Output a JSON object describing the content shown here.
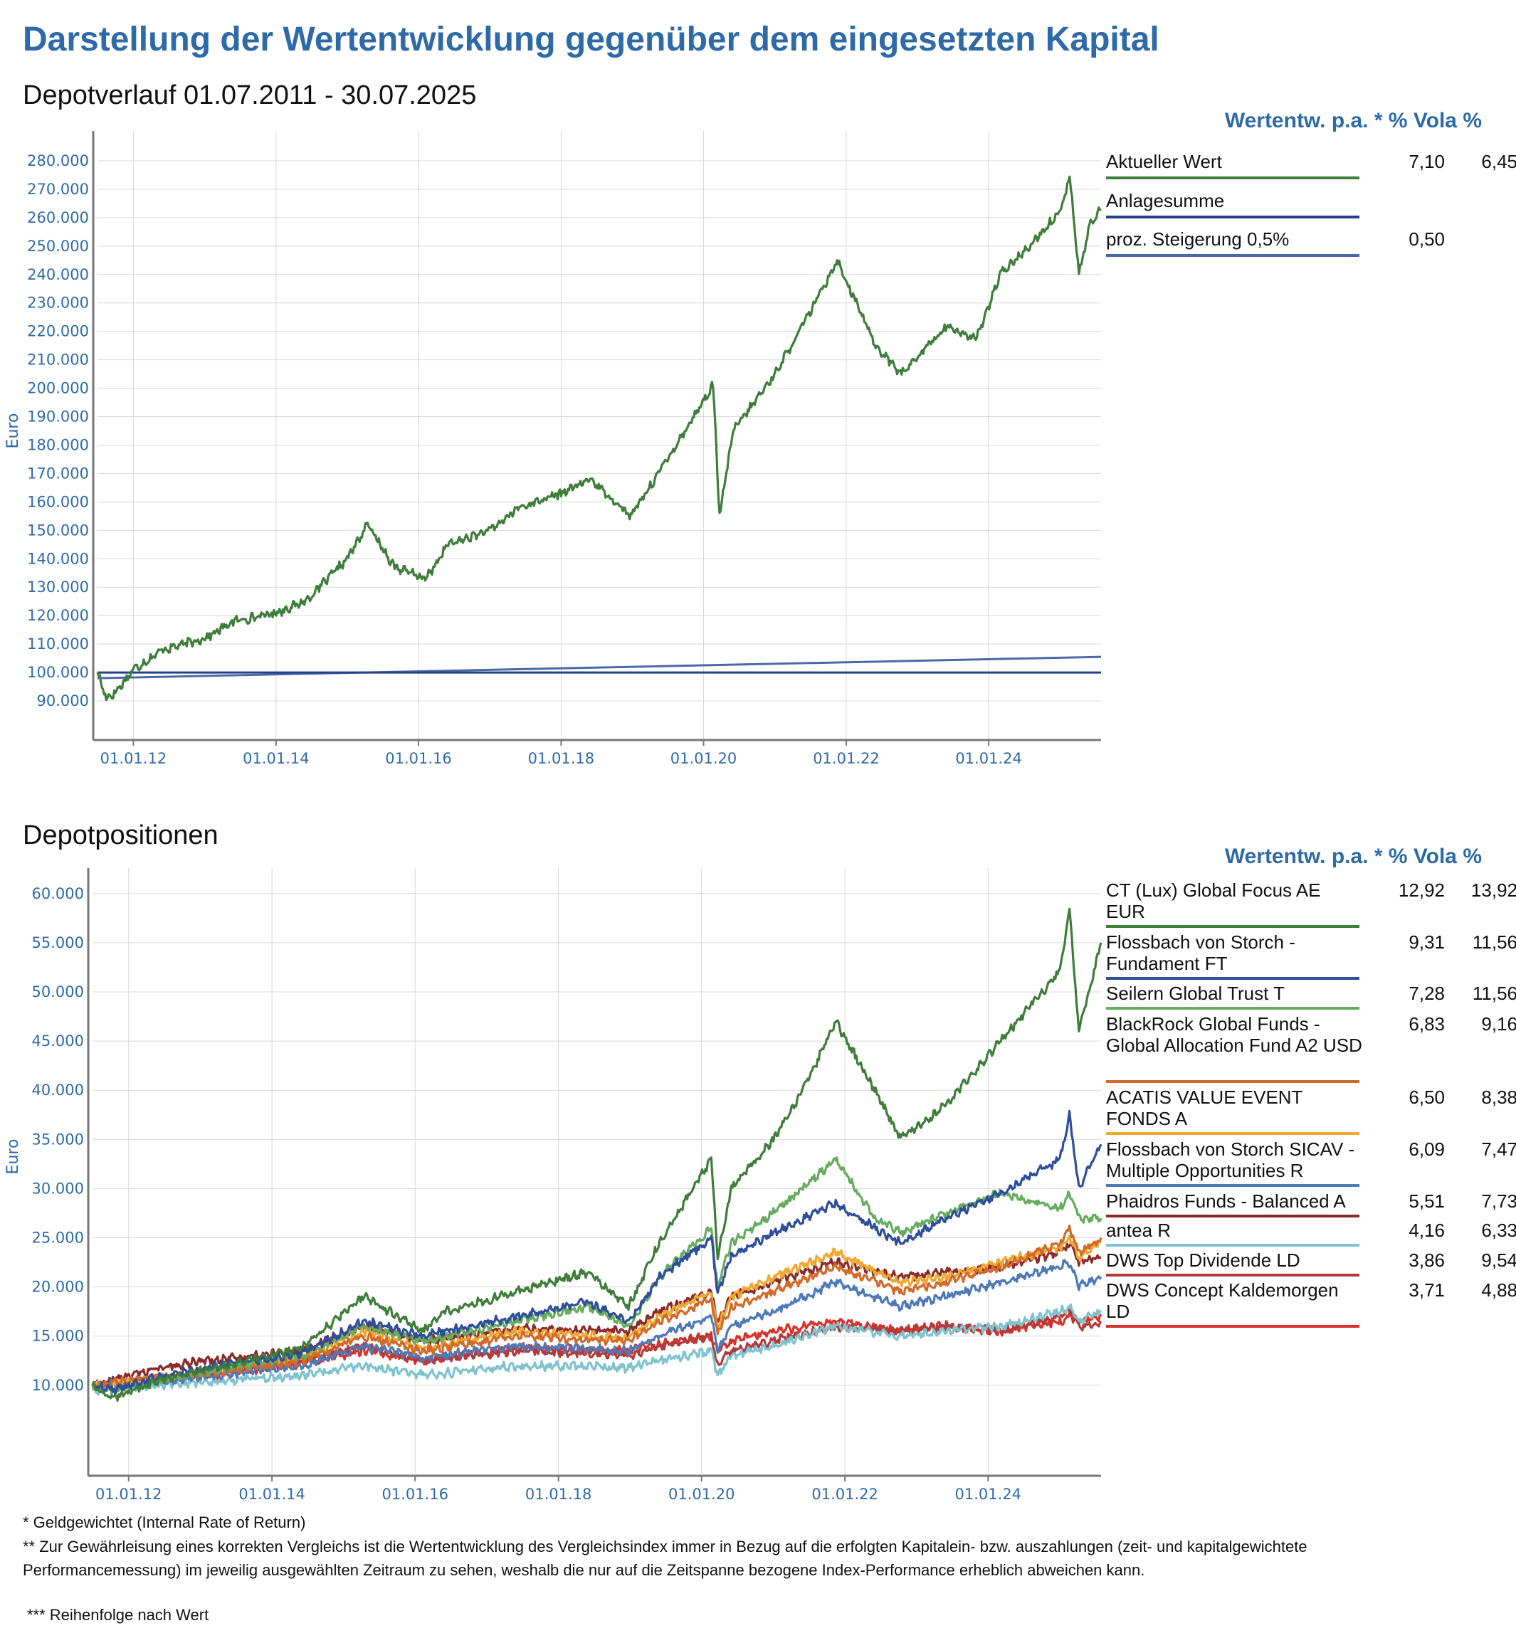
{
  "title": "Darstellung der Wertentwicklung gegenüber dem eingesetzten Kapital",
  "legend_header": "Wertentw. p.a. * % Vola %",
  "charts": [
    {
      "id": "depotverlauf",
      "subtitle": "Depotverlauf 01.07.2011 - 30.07.2025",
      "ylabel": "Euro",
      "x_ticks": [
        "01.01.12",
        "01.01.14",
        "01.01.16",
        "01.01.18",
        "01.01.20",
        "01.01.22",
        "01.01.24"
      ],
      "y_ticks": [
        "90.000",
        "100.000",
        "110.000",
        "120.000",
        "130.000",
        "140.000",
        "150.000",
        "160.000",
        "170.000",
        "180.000",
        "190.000",
        "200.000",
        "210.000",
        "220.000",
        "230.000",
        "240.000",
        "250.000",
        "260.000",
        "270.000",
        "280.000"
      ],
      "legend": [
        {
          "name": "Aktueller Wert",
          "return": "7,10",
          "vola": "6,45"
        },
        {
          "name": "Anlagesumme",
          "return": "",
          "vola": ""
        },
        {
          "name": "proz. Steigerung 0,5%",
          "return": "0,50",
          "vola": ""
        }
      ]
    },
    {
      "id": "depotpositionen",
      "subtitle": "Depotpositionen",
      "ylabel": "Euro",
      "x_ticks": [
        "01.01.12",
        "01.01.14",
        "01.01.16",
        "01.01.18",
        "01.01.20",
        "01.01.22",
        "01.01.24"
      ],
      "y_ticks": [
        "10.000",
        "15.000",
        "20.000",
        "25.000",
        "30.000",
        "35.000",
        "40.000",
        "45.000",
        "50.000",
        "55.000",
        "60.000"
      ],
      "legend": [
        {
          "name": "CT (Lux) Global Focus AE EUR",
          "return": "12,92",
          "vola": "13,92"
        },
        {
          "name": "Flossbach von Storch - Fundament FT",
          "return": "9,31",
          "vola": "11,56"
        },
        {
          "name": "Seilern Global Trust T",
          "return": "7,28",
          "vola": "11,56"
        },
        {
          "name": "BlackRock Global Funds - Global Allocation Fund A2 USD",
          "return": "6,83",
          "vola": "9,16"
        },
        {
          "name": "ACATIS VALUE EVENT FONDS A",
          "return": "6,50",
          "vola": "8,38"
        },
        {
          "name": "Flossbach von Storch SICAV - Multiple Opportunities R",
          "return": "6,09",
          "vola": "7,47"
        },
        {
          "name": "Phaidros Funds - Balanced A",
          "return": "5,51",
          "vola": "7,73"
        },
        {
          "name": "antea R",
          "return": "4,16",
          "vola": "6,33"
        },
        {
          "name": "DWS Top Dividende LD",
          "return": "3,86",
          "vola": "9,54"
        },
        {
          "name": "DWS Concept Kaldemorgen LD",
          "return": "3,71",
          "vola": "4,88"
        }
      ]
    }
  ],
  "footnotes": [
    "* Geldgewichtet (Internal Rate of Return)",
    "** Zur Gewährleisung eines korrekten Vergleichs ist die Wertentwicklung des Vergleichsindex immer in Bezug auf die erfolgten Kapitalein- bzw. auszahlungen (zeit- und kapitalgewichtete Performancemessung) im jeweilig ausgewählten Zeitraum zu sehen, weshalb die nur auf die Zeitspanne bezogene Index-Performance erheblich abweichen kann.",
    "*** Reihenfolge nach Wert"
  ],
  "chart_data": [
    {
      "type": "line",
      "title": "Depotverlauf 01.07.2011 - 30.07.2025",
      "ylabel": "Euro",
      "ylim": [
        85000,
        285000
      ],
      "xlim": [
        "2011-07-01",
        "2025-07-30"
      ],
      "grid": true,
      "legend_position": "right",
      "series": [
        {
          "name": "Aktueller Wert",
          "color": "#3f7d3a",
          "x": [
            "2011-07-01",
            "2011-08-15",
            "2011-10-01",
            "2012-01-01",
            "2012-06-01",
            "2013-01-01",
            "2013-06-01",
            "2014-01-01",
            "2014-06-01",
            "2015-01-01",
            "2015-04-15",
            "2015-09-01",
            "2016-02-10",
            "2016-06-01",
            "2017-01-01",
            "2017-06-01",
            "2018-01-01",
            "2018-06-01",
            "2018-12-24",
            "2019-06-01",
            "2020-02-19",
            "2020-03-23",
            "2020-06-01",
            "2021-01-01",
            "2021-06-01",
            "2021-11-15",
            "2022-06-01",
            "2022-10-12",
            "2023-06-01",
            "2023-10-27",
            "2024-03-01",
            "2024-07-01",
            "2025-01-01",
            "2025-02-19",
            "2025-04-08",
            "2025-06-01",
            "2025-07-30"
          ],
          "values": [
            100000,
            91000,
            93000,
            101000,
            108000,
            112000,
            118000,
            121000,
            125000,
            140000,
            152000,
            137000,
            133000,
            145000,
            150000,
            158000,
            163000,
            168000,
            155000,
            172000,
            201000,
            155000,
            185000,
            205000,
            223000,
            245000,
            215000,
            205000,
            222000,
            217000,
            240000,
            248000,
            262000,
            275000,
            240000,
            257000,
            263000
          ]
        },
        {
          "name": "Anlagesumme",
          "color": "#27408b",
          "x": [
            "2011-07-01",
            "2025-07-30"
          ],
          "values": [
            100000,
            100000
          ]
        },
        {
          "name": "proz. Steigerung 0,5%",
          "color": "#4a69a8",
          "x": [
            "2011-07-01",
            "2025-07-30"
          ],
          "values": [
            98000,
            105500
          ]
        }
      ]
    },
    {
      "type": "line",
      "title": "Depotpositionen",
      "ylabel": "Euro",
      "ylim": [
        5500,
        61000
      ],
      "xlim": [
        "2011-07-01",
        "2025-07-30"
      ],
      "grid": true,
      "legend_position": "right",
      "series": [
        {
          "name": "CT (Lux) Global Focus AE EUR",
          "color": "#3f7d3a",
          "x": [
            "2011-07-01",
            "2011-10-01",
            "2012-06-01",
            "2013-06-01",
            "2014-06-01",
            "2015-04-15",
            "2016-02-10",
            "2016-06-01",
            "2017-06-01",
            "2018-06-01",
            "2018-12-24",
            "2019-06-01",
            "2020-02-19",
            "2020-03-23",
            "2020-06-01",
            "2021-01-01",
            "2021-06-01",
            "2021-11-15",
            "2022-06-01",
            "2022-10-12",
            "2023-06-01",
            "2024-03-01",
            "2025-01-01",
            "2025-02-19",
            "2025-04-08",
            "2025-07-30"
          ],
          "values": [
            10000,
            8600,
            10500,
            12000,
            13800,
            19000,
            15500,
            17500,
            19500,
            21500,
            18000,
            24500,
            33000,
            23000,
            30000,
            35000,
            40000,
            47000,
            40000,
            35000,
            38500,
            45000,
            52000,
            58500,
            46000,
            55000
          ]
        },
        {
          "name": "Flossbach von Storch - Fundament FT",
          "color": "#2e4e9a",
          "x": [
            "2011-07-01",
            "2011-10-01",
            "2012-06-01",
            "2013-06-01",
            "2014-06-01",
            "2015-04-15",
            "2016-02-10",
            "2017-06-01",
            "2018-06-01",
            "2018-12-24",
            "2019-06-01",
            "2020-02-19",
            "2020-03-23",
            "2020-06-01",
            "2021-01-01",
            "2021-11-15",
            "2022-06-01",
            "2022-10-12",
            "2023-06-01",
            "2024-03-01",
            "2025-01-01",
            "2025-02-19",
            "2025-04-08",
            "2025-07-30"
          ],
          "values": [
            10000,
            9500,
            10800,
            12200,
            13200,
            16500,
            15000,
            17000,
            18500,
            16500,
            21000,
            25000,
            19500,
            23000,
            25500,
            28500,
            26000,
            24500,
            27000,
            29500,
            33000,
            37500,
            30000,
            34500
          ]
        },
        {
          "name": "Seilern Global Trust T",
          "color": "#66ac5e",
          "x": [
            "2011-07-01",
            "2011-10-01",
            "2012-06-01",
            "2013-06-01",
            "2014-06-01",
            "2015-04-15",
            "2016-02-10",
            "2017-06-01",
            "2018-06-01",
            "2018-12-24",
            "2019-06-01",
            "2020-02-19",
            "2020-03-23",
            "2020-06-01",
            "2021-01-01",
            "2021-11-15",
            "2022-06-01",
            "2022-10-12",
            "2023-06-01",
            "2024-03-01",
            "2025-01-01",
            "2025-02-19",
            "2025-04-08",
            "2025-07-30"
          ],
          "values": [
            10000,
            9300,
            10500,
            11800,
            13000,
            16000,
            14500,
            16500,
            18000,
            16000,
            21000,
            26000,
            20000,
            24500,
            27500,
            33000,
            27000,
            25500,
            27500,
            29500,
            28000,
            29500,
            27000,
            27000
          ]
        },
        {
          "name": "BlackRock Global Funds - Global Allocation Fund A2 USD",
          "color": "#d26a2a",
          "x": [
            "2011-07-01",
            "2012-06-01",
            "2013-06-01",
            "2014-06-01",
            "2015-04-15",
            "2016-02-10",
            "2017-06-01",
            "2018-12-24",
            "2019-06-01",
            "2020-02-19",
            "2020-03-23",
            "2020-06-01",
            "2021-01-01",
            "2021-11-15",
            "2022-10-12",
            "2023-06-01",
            "2024-03-01",
            "2025-01-01",
            "2025-02-19",
            "2025-04-08",
            "2025-07-30"
          ],
          "values": [
            10000,
            10800,
            11500,
            12500,
            15000,
            13500,
            15000,
            14500,
            16500,
            18800,
            15500,
            18000,
            19500,
            22000,
            19500,
            20500,
            22000,
            24500,
            26000,
            23500,
            25000
          ]
        },
        {
          "name": "ACATIS VALUE EVENT FONDS A",
          "color": "#f0a830",
          "x": [
            "2011-07-01",
            "2012-06-01",
            "2013-06-01",
            "2014-06-01",
            "2015-04-15",
            "2016-02-10",
            "2017-06-01",
            "2018-12-24",
            "2019-06-01",
            "2020-02-19",
            "2020-03-23",
            "2020-06-01",
            "2021-01-01",
            "2021-11-15",
            "2022-10-12",
            "2023-06-01",
            "2024-03-01",
            "2025-01-01",
            "2025-02-19",
            "2025-04-08",
            "2025-07-30"
          ],
          "values": [
            10000,
            10600,
            11800,
            12800,
            15500,
            13800,
            15500,
            14800,
            17000,
            19500,
            16000,
            19000,
            21000,
            23500,
            20500,
            21000,
            22500,
            24000,
            25000,
            23000,
            24500
          ]
        },
        {
          "name": "Flossbach von Storch SICAV - Multiple Opportunities R",
          "color": "#4e79b8",
          "x": [
            "2011-07-01",
            "2012-06-01",
            "2013-06-01",
            "2014-06-01",
            "2015-04-15",
            "2016-02-10",
            "2017-06-01",
            "2018-12-24",
            "2019-06-01",
            "2020-02-19",
            "2020-03-23",
            "2020-06-01",
            "2021-01-01",
            "2021-11-15",
            "2022-10-12",
            "2023-06-01",
            "2024-03-01",
            "2025-01-01",
            "2025-02-19",
            "2025-04-08",
            "2025-07-30"
          ],
          "values": [
            10000,
            10400,
            11200,
            12000,
            14000,
            12800,
            14000,
            13500,
            15000,
            17000,
            13500,
            16000,
            17500,
            20500,
            18000,
            19000,
            20500,
            22000,
            22500,
            20000,
            21000
          ]
        },
        {
          "name": "Phaidros Funds - Balanced A",
          "color": "#8b2a2a",
          "x": [
            "2011-07-01",
            "2012-06-01",
            "2013-06-01",
            "2014-06-01",
            "2015-04-15",
            "2016-02-10",
            "2017-06-01",
            "2018-12-24",
            "2019-06-01",
            "2020-02-19",
            "2020-03-23",
            "2020-06-01",
            "2021-01-01",
            "2021-11-15",
            "2022-10-12",
            "2023-06-01",
            "2024-03-01",
            "2025-01-01",
            "2025-02-19",
            "2025-04-08",
            "2025-07-30"
          ],
          "values": [
            10000,
            11800,
            12800,
            13500,
            16000,
            14500,
            15800,
            15500,
            17500,
            19500,
            16500,
            19000,
            20500,
            22500,
            21000,
            21500,
            22000,
            23500,
            24500,
            22500,
            23000
          ]
        },
        {
          "name": "antea R",
          "color": "#7ec3cf",
          "x": [
            "2011-07-01",
            "2012-06-01",
            "2013-06-01",
            "2014-06-01",
            "2015-04-15",
            "2016-02-10",
            "2017-06-01",
            "2018-12-24",
            "2019-06-01",
            "2020-02-19",
            "2020-03-23",
            "2020-06-01",
            "2021-01-01",
            "2021-11-15",
            "2022-10-12",
            "2023-06-01",
            "2024-03-01",
            "2025-01-01",
            "2025-02-19",
            "2025-04-08",
            "2025-07-30"
          ],
          "values": [
            9500,
            10000,
            10500,
            11000,
            12000,
            11000,
            12000,
            11800,
            12500,
            13500,
            11000,
            13000,
            14000,
            16000,
            15000,
            15500,
            16000,
            17500,
            18000,
            16500,
            17500
          ]
        },
        {
          "name": "DWS Top Dividende LD",
          "color": "#b23a3a",
          "x": [
            "2011-07-01",
            "2012-06-01",
            "2013-06-01",
            "2014-06-01",
            "2015-04-15",
            "2016-02-10",
            "2017-06-01",
            "2018-12-24",
            "2019-06-01",
            "2020-02-19",
            "2020-03-23",
            "2020-06-01",
            "2021-01-01",
            "2021-11-15",
            "2022-10-12",
            "2023-06-01",
            "2024-03-01",
            "2025-01-01",
            "2025-02-19",
            "2025-04-08",
            "2025-07-30"
          ],
          "values": [
            10000,
            10500,
            11500,
            12500,
            14000,
            12500,
            13500,
            13000,
            14000,
            15000,
            12000,
            13500,
            14500,
            16000,
            15500,
            16000,
            15500,
            17000,
            17500,
            16000,
            16500
          ]
        },
        {
          "name": "DWS Concept Kaldemorgen LD",
          "color": "#d8322a",
          "x": [
            "2011-07-01",
            "2012-06-01",
            "2013-06-01",
            "2014-06-01",
            "2015-04-15",
            "2016-02-10",
            "2017-06-01",
            "2018-12-24",
            "2019-06-01",
            "2020-02-19",
            "2020-03-23",
            "2020-06-01",
            "2021-01-01",
            "2021-11-15",
            "2022-10-12",
            "2023-06-01",
            "2024-03-01",
            "2025-01-01",
            "2025-02-19",
            "2025-04-08",
            "2025-07-30"
          ],
          "values": [
            10000,
            10400,
            11300,
            12200,
            13500,
            12500,
            13800,
            13500,
            14200,
            15000,
            13500,
            14500,
            15500,
            16500,
            15500,
            16000,
            15500,
            16500,
            17000,
            16500,
            17000
          ]
        }
      ]
    }
  ]
}
